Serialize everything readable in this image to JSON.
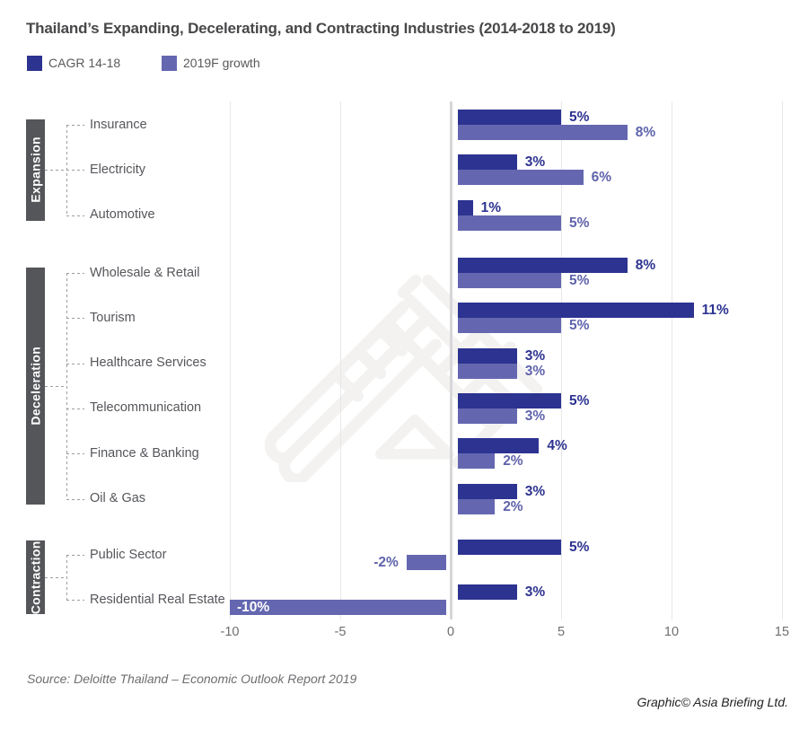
{
  "title": "Thailand’s Expanding, Decelerating, and Contracting Industries (2014-2018 to 2019)",
  "source": "Source: Deloitte Thailand – Economic Outlook Report 2019",
  "credit": "Graphic© Asia Briefing Ltd.",
  "colors": {
    "cagr_navy": "#2D3390",
    "growth_purple": "#6467B0",
    "growth_label_purple": "#5F63AB",
    "group_box_gray": "#55565A"
  },
  "chart_data": {
    "type": "bar",
    "orientation": "horizontal",
    "title": "Thailand’s Expanding, Decelerating, and Contracting Industries (2014-2018 to 2019)",
    "legend": [
      {
        "name": "CAGR 14-18",
        "color": "#2D3390"
      },
      {
        "name": "2019F growth",
        "color": "#6467B0"
      }
    ],
    "legend_position": "top-left",
    "value_suffix": "%",
    "xlim": [
      -10,
      15
    ],
    "x_ticks": [
      -10,
      -5,
      0,
      5,
      10,
      15
    ],
    "grid": true,
    "groups": [
      {
        "label": "Expansion",
        "rows": [
          {
            "industry": "Insurance",
            "cagr_14_18": 5,
            "growth_2019f": 8
          },
          {
            "industry": "Electricity",
            "cagr_14_18": 3,
            "growth_2019f": 6
          },
          {
            "industry": "Automotive",
            "cagr_14_18": 1,
            "growth_2019f": 5
          }
        ]
      },
      {
        "label": "Deceleration",
        "rows": [
          {
            "industry": "Wholesale & Retail",
            "cagr_14_18": 8,
            "growth_2019f": 5
          },
          {
            "industry": "Tourism",
            "cagr_14_18": 11,
            "growth_2019f": 5
          },
          {
            "industry": "Healthcare Services",
            "cagr_14_18": 3,
            "growth_2019f": 3
          },
          {
            "industry": "Telecommunication",
            "cagr_14_18": 5,
            "growth_2019f": 3
          },
          {
            "industry": "Finance & Banking",
            "cagr_14_18": 4,
            "growth_2019f": 2
          },
          {
            "industry": "Oil & Gas",
            "cagr_14_18": 3,
            "growth_2019f": 2
          }
        ]
      },
      {
        "label": "Contraction",
        "rows": [
          {
            "industry": "Public Sector",
            "cagr_14_18": 5,
            "growth_2019f": -2
          },
          {
            "industry": "Residential Real Estate",
            "cagr_14_18": 3,
            "growth_2019f": -10
          }
        ]
      }
    ]
  }
}
